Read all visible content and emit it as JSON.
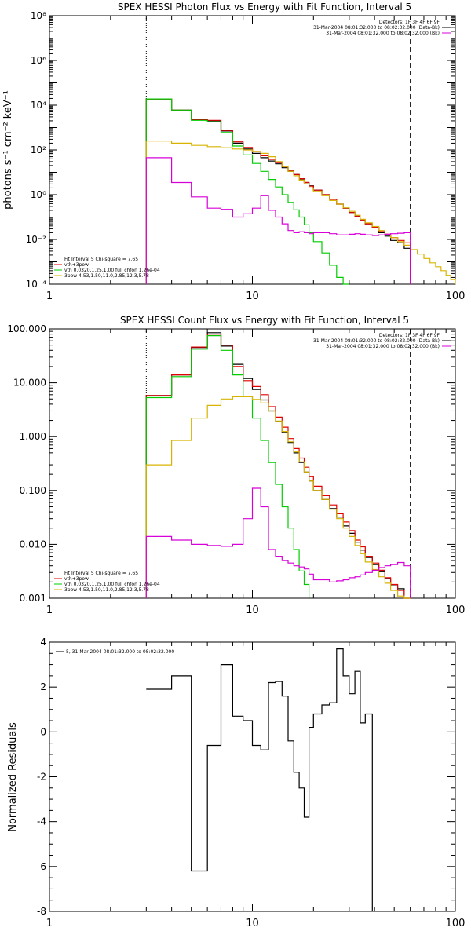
{
  "chart_data": [
    {
      "type": "line",
      "title": "SPEX HESSI Photon Flux vs Energy with Fit Function, Interval 5",
      "ylabel": "photons s⁻¹ cm⁻² keV⁻¹",
      "xlabel": "",
      "xscale": "log",
      "yscale": "log",
      "xlim": [
        1,
        100
      ],
      "ylim": [
        0.0001,
        100000000
      ],
      "x_ticks": [
        1,
        10,
        100
      ],
      "x_tick_labels": [
        "1",
        "10",
        "100"
      ],
      "y_ticks": [
        0.0001,
        0.01,
        1,
        100,
        10000,
        1000000,
        100000000
      ],
      "y_tick_labels": [
        "10⁻⁴",
        "10⁻²",
        "10⁰",
        "10²",
        "10⁴",
        "10⁶",
        "10⁸"
      ],
      "vlines": [
        {
          "x": 3,
          "style": "dotted"
        },
        {
          "x": 60,
          "style": "dashed"
        }
      ],
      "legend_topright": [
        {
          "text": "Detectors: 1F 3F 4F 6F 9F",
          "color": "#000000"
        },
        {
          "text": "31-Mar-2004 08:01:32.000 to 08:02:32.000 (Data-Bk)",
          "color": "#000000"
        },
        {
          "text": "31-Mar-2004 08:01:32.000 to 08:02:32.000 (Bk)",
          "color": "#d800d8"
        }
      ],
      "legend_bottomleft": [
        {
          "text": "Fit Interval 5   Chi-square = 7.65",
          "color": "#000000"
        },
        {
          "text": "vth+3pow",
          "color": "#e00000"
        },
        {
          "text": "vth 0.0320,1.25,1.00  full chfon 1.26e-04",
          "color": "#00cc00"
        },
        {
          "text": "3pow 4.53,1.50,11.0,2.85,12.3,5.78",
          "color": "#d8b400"
        }
      ],
      "edges": [
        3,
        4,
        5,
        6,
        7,
        8,
        9,
        10,
        11,
        12,
        13,
        14,
        15,
        16,
        17,
        18,
        19,
        20,
        22,
        24,
        26,
        28,
        30,
        32,
        34,
        36,
        39,
        42,
        45,
        48,
        52,
        56,
        60,
        65,
        70,
        75,
        80,
        85,
        90,
        95,
        100
      ],
      "series": [
        {
          "key": "data",
          "color": "#000000",
          "values": [
            19000,
            6000,
            2200,
            2000,
            700,
            200,
            110,
            70,
            45,
            32,
            24,
            16,
            11,
            8,
            5,
            3.5,
            2.5,
            1.6,
            1.0,
            0.62,
            0.38,
            0.25,
            0.16,
            0.11,
            0.075,
            0.05,
            0.035,
            0.02,
            0.014,
            0.009,
            0.007,
            0.004
          ]
        },
        {
          "key": "total",
          "color": "#e00000",
          "values": [
            19000,
            6000,
            2300,
            2100,
            750,
            230,
            130,
            85,
            55,
            38,
            27,
            18,
            12,
            8,
            5.2,
            3.5,
            2.4,
            1.6,
            1.0,
            0.62,
            0.38,
            0.25,
            0.16,
            0.11,
            0.075,
            0.05,
            0.035,
            0.024,
            0.017,
            0.012,
            0.009,
            0.007
          ]
        },
        {
          "key": "thermal",
          "color": "#00cc00",
          "values": [
            19000,
            6000,
            2100,
            1800,
            600,
            150,
            60,
            25,
            11,
            4.8,
            2.2,
            1.0,
            0.45,
            0.21,
            0.1,
            0.045,
            0.02,
            0.008,
            0.0025,
            0.0007,
            0.0002,
            6e-05
          ]
        },
        {
          "key": "powerlaw",
          "color": "#d8b400",
          "values": [
            250,
            200,
            160,
            140,
            125,
            110,
            100,
            85,
            70,
            50,
            30,
            18,
            11,
            7,
            4.5,
            3.0,
            2.0,
            1.4,
            0.9,
            0.55,
            0.38,
            0.26,
            0.18,
            0.12,
            0.08,
            0.055,
            0.038,
            0.025,
            0.017,
            0.012,
            0.008,
            0.0055,
            0.0035,
            0.0022,
            0.0014,
            0.0009,
            0.0006,
            0.0004,
            0.00025,
            0.00016
          ]
        },
        {
          "key": "background",
          "color": "#d800d8",
          "values": [
            45,
            3.5,
            0.8,
            0.25,
            0.22,
            0.1,
            0.14,
            0.25,
            0.9,
            0.2,
            0.1,
            0.05,
            0.025,
            0.02,
            0.022,
            0.02,
            0.018,
            0.02,
            0.02,
            0.018,
            0.016,
            0.016,
            0.017,
            0.018,
            0.017,
            0.016,
            0.015,
            0.016,
            0.017,
            0.018,
            0.019,
            0.02
          ]
        }
      ]
    },
    {
      "type": "line",
      "title": "SPEX HESSI Count Flux vs Energy with Fit Function, Interval 5",
      "ylabel": "",
      "xlabel": "",
      "xscale": "log",
      "yscale": "log",
      "xlim": [
        1,
        100
      ],
      "ylim": [
        0.001,
        100
      ],
      "x_ticks": [
        1,
        10,
        100
      ],
      "x_tick_labels": [
        "1",
        "10",
        "100"
      ],
      "y_ticks": [
        0.001,
        0.01,
        0.1,
        1,
        10,
        100
      ],
      "y_tick_labels": [
        "0.001",
        "0.010",
        "0.100",
        "1.000",
        "10.000",
        "100.000"
      ],
      "vlines": [
        {
          "x": 3,
          "style": "dotted"
        },
        {
          "x": 60,
          "style": "dashed"
        }
      ],
      "legend_topright": [
        {
          "text": "Detectors: 1F 3F 4F 6F 9F",
          "color": "#000000"
        },
        {
          "text": "31-Mar-2004 08:01:32.000 to 08:02:32.000 (Data-Bk)",
          "color": "#000000"
        },
        {
          "text": "31-Mar-2004 08:01:32.000 to 08:02:32.000 (Bk)",
          "color": "#d800d8"
        }
      ],
      "legend_bottomleft": [
        {
          "text": "Fit Interval 5   Chi-square = 7.65",
          "color": "#000000"
        },
        {
          "text": "vth+3pow",
          "color": "#e00000"
        },
        {
          "text": "vth 0.0320,1.25,1.00  full chfon 1.26e-04",
          "color": "#00cc00"
        },
        {
          "text": "3pow 4.53,1.50,11.0,2.85,12.3,5.78",
          "color": "#d8b400"
        }
      ],
      "edges": [
        3,
        4,
        5,
        6,
        7,
        8,
        9,
        10,
        11,
        12,
        13,
        14,
        15,
        16,
        17,
        18,
        19,
        20,
        22,
        24,
        26,
        28,
        30,
        32,
        34,
        36,
        39,
        42,
        45,
        48,
        52,
        56,
        60
      ],
      "series": [
        {
          "key": "data",
          "color": "#000000",
          "values": [
            5.8,
            14,
            45,
            85,
            48,
            22,
            12,
            7.5,
            4.8,
            3.0,
            1.9,
            1.2,
            0.78,
            0.5,
            0.33,
            0.22,
            0.15,
            0.1,
            0.068,
            0.046,
            0.032,
            0.022,
            0.016,
            0.011,
            0.0078,
            0.0057,
            0.0042,
            0.0031,
            0.0023,
            0.0017,
            0.0015,
            0.001
          ]
        },
        {
          "key": "total",
          "color": "#e00000",
          "values": [
            5.8,
            14,
            46,
            80,
            50,
            20,
            11,
            8.5,
            6,
            3.6,
            2.3,
            1.5,
            0.92,
            0.6,
            0.4,
            0.27,
            0.18,
            0.12,
            0.08,
            0.054,
            0.037,
            0.026,
            0.018,
            0.012,
            0.009,
            0.006,
            0.0045,
            0.0033,
            0.0024,
            0.0018,
            0.0014,
            0.001
          ]
        },
        {
          "key": "thermal",
          "color": "#00cc00",
          "values": [
            5.3,
            13,
            42,
            75,
            40,
            14,
            5.5,
            2.2,
            0.85,
            0.33,
            0.13,
            0.05,
            0.02,
            0.008,
            0.0032,
            0.0018
          ]
        },
        {
          "key": "powerlaw",
          "color": "#d8b400",
          "values": [
            0.3,
            0.85,
            2.2,
            3.8,
            5.0,
            5.5,
            5.5,
            4.9,
            4.2,
            3.0,
            1.95,
            1.25,
            0.8,
            0.52,
            0.34,
            0.22,
            0.15,
            0.1,
            0.068,
            0.045,
            0.03,
            0.02,
            0.014,
            0.0095,
            0.0067,
            0.0047,
            0.0034,
            0.0025,
            0.0019,
            0.0014,
            0.0011,
            0.001
          ]
        },
        {
          "key": "background",
          "color": "#d800d8",
          "values": [
            0.014,
            0.012,
            0.01,
            0.0095,
            0.0092,
            0.01,
            0.03,
            0.11,
            0.05,
            0.008,
            0.006,
            0.005,
            0.0045,
            0.004,
            0.0038,
            0.0035,
            0.0028,
            0.0022,
            0.0022,
            0.002,
            0.0021,
            0.0022,
            0.0024,
            0.0025,
            0.0027,
            0.003,
            0.0033,
            0.0037,
            0.004,
            0.0042,
            0.0046,
            0.004
          ]
        }
      ]
    },
    {
      "type": "line",
      "title": "",
      "ylabel": "Normalized Residuals",
      "xlabel": "",
      "xscale": "log",
      "yscale": "linear",
      "xlim": [
        1,
        100
      ],
      "ylim": [
        -8,
        4
      ],
      "x_ticks": [
        1,
        10,
        100
      ],
      "x_tick_labels": [
        "1",
        "10",
        "100"
      ],
      "y_ticks": [
        -8,
        -6,
        -4,
        -2,
        0,
        2,
        4
      ],
      "y_tick_labels": [
        "-8",
        "-6",
        "-4",
        "-2",
        "0",
        "2",
        "4"
      ],
      "legend_topleft": [
        {
          "text": "5, 31-Mar-2004 08:01:32.000 to 08:02:32.000",
          "color": "#000000"
        }
      ],
      "edges": [
        3,
        4,
        5,
        6,
        7,
        8,
        9,
        10,
        11,
        12,
        13,
        14,
        15,
        16,
        17,
        18,
        19,
        20,
        22,
        24,
        26,
        28,
        30,
        32,
        34,
        36,
        39,
        42,
        45,
        48,
        52,
        56,
        60
      ],
      "series": [
        {
          "key": "residuals",
          "color": "#000000",
          "values": [
            1.9,
            2.5,
            -6.2,
            -0.6,
            3.0,
            0.7,
            0.5,
            -0.6,
            -0.8,
            2.2,
            2.25,
            1.6,
            -0.4,
            -1.8,
            -2.5,
            -3.8,
            0.2,
            0.8,
            1.2,
            1.3,
            3.7,
            2.5,
            1.7,
            2.7,
            0.4,
            0.8
          ]
        }
      ]
    }
  ]
}
